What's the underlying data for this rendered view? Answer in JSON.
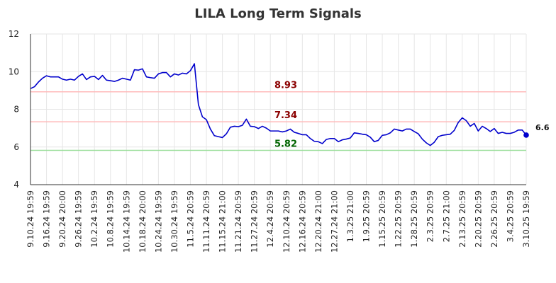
{
  "chart_data": {
    "type": "line",
    "title": "LILA Long Term Signals",
    "xlabel": "",
    "ylabel": "",
    "ylim": [
      4,
      12
    ],
    "yticks": [
      "4",
      "6",
      "8",
      "10",
      "12"
    ],
    "grid": true,
    "x_tick_labels": [
      "9.10.24 19:59",
      "9.16.24 19:59",
      "9.20.24 20:00",
      "9.26.24 19:59",
      "10.2.24 19:59",
      "10.8.24 19:59",
      "10.14.24 19:59",
      "10.18.24 20:00",
      "10.24.24 19:59",
      "10.30.24 19:59",
      "11.5.24 20:59",
      "11.11.24 20:59",
      "11.15.24 21:00",
      "11.21.24 20:59",
      "11.27.24 20:59",
      "12.4.24 20:59",
      "12.10.24 20:59",
      "12.16.24 20:59",
      "12.20.24 21:00",
      "12.27.24 21:00",
      "1.3.25 21:00",
      "1.9.25 20:59",
      "1.15.25 20:59",
      "1.22.25 20:59",
      "1.28.25 20:59",
      "2.3.25 20:59",
      "2.7.25 21:00",
      "2.13.25 20:59",
      "2.20.25 20:59",
      "2.26.25 20:59",
      "3.4.25 20:59",
      "3.10.25 19:59"
    ],
    "series": [
      {
        "color": "#0000cc",
        "values": [
          9.1,
          9.2,
          9.45,
          9.65,
          9.78,
          9.72,
          9.72,
          9.72,
          9.6,
          9.55,
          9.6,
          9.55,
          9.75,
          9.88,
          9.58,
          9.72,
          9.75,
          9.58,
          9.8,
          9.55,
          9.52,
          9.48,
          9.55,
          9.65,
          9.6,
          9.55,
          10.1,
          10.08,
          10.15,
          9.72,
          9.68,
          9.65,
          9.88,
          9.95,
          9.95,
          9.72,
          9.88,
          9.82,
          9.92,
          9.88,
          10.05,
          10.42,
          8.25,
          7.6,
          7.45,
          6.95,
          6.6,
          6.55,
          6.5,
          6.7,
          7.05,
          7.1,
          7.08,
          7.15,
          7.48,
          7.1,
          7.08,
          6.98,
          7.1,
          7.0,
          6.85,
          6.85,
          6.85,
          6.8,
          6.85,
          6.95,
          6.78,
          6.72,
          6.65,
          6.65,
          6.45,
          6.3,
          6.28,
          6.18,
          6.4,
          6.45,
          6.45,
          6.28,
          6.38,
          6.42,
          6.48,
          6.75,
          6.72,
          6.68,
          6.65,
          6.52,
          6.28,
          6.35,
          6.62,
          6.65,
          6.75,
          6.95,
          6.9,
          6.85,
          6.95,
          6.95,
          6.82,
          6.7,
          6.42,
          6.22,
          6.08,
          6.25,
          6.55,
          6.62,
          6.65,
          6.68,
          6.88,
          7.3,
          7.55,
          7.4,
          7.1,
          7.25,
          6.85,
          7.1,
          6.98,
          6.82,
          6.98,
          6.72,
          6.78,
          6.72,
          6.72,
          6.78,
          6.9,
          6.9,
          6.63
        ]
      }
    ],
    "levels": [
      {
        "value": 8.93,
        "label": "8.93",
        "line_color": "#ffbbbb",
        "text_color": "#8b0000"
      },
      {
        "value": 7.34,
        "label": "7.34",
        "line_color": "#ffbbbb",
        "text_color": "#8b0000"
      },
      {
        "value": 5.82,
        "label": "5.82",
        "line_color": "#99dd99",
        "text_color": "#006400"
      }
    ],
    "last_value_label": "6.6",
    "last_marker_color": "#0000cc"
  }
}
